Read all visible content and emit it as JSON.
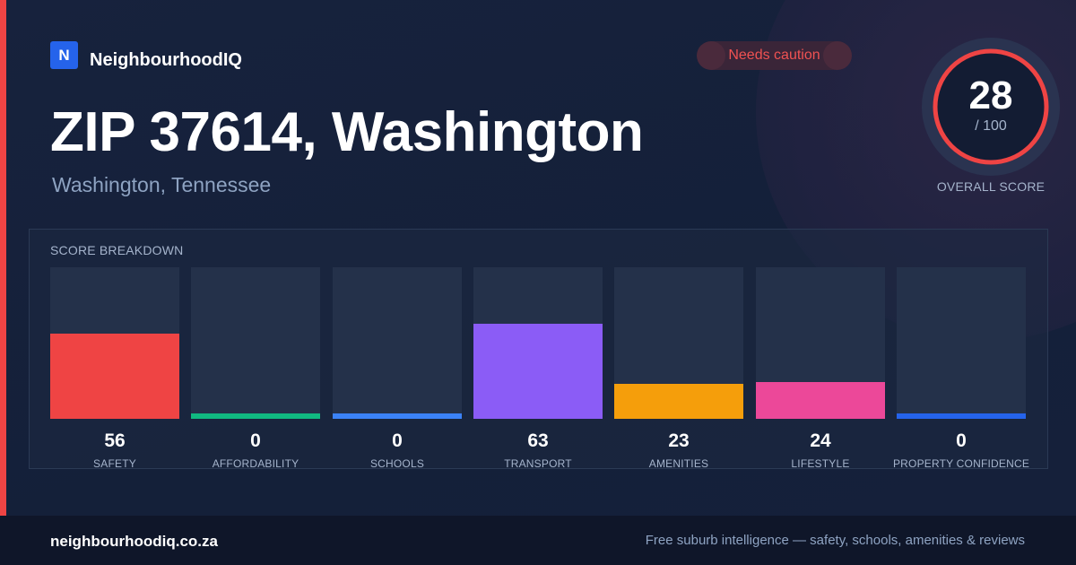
{
  "brand": {
    "logo_letter": "N",
    "name": "NeighbourhoodIQ"
  },
  "badge": {
    "label": "Needs caution",
    "color": "#f05252"
  },
  "header": {
    "title": "ZIP 37614, Washington",
    "subtitle": "Washington, Tennessee"
  },
  "overall": {
    "score": "28",
    "max_label": "/ 100",
    "label": "OVERALL SCORE",
    "fraction": 0.28,
    "ring_color": "#ef4444"
  },
  "breakdown": {
    "title": "SCORE BREAKDOWN",
    "items": [
      {
        "label": "SAFETY",
        "value": "56",
        "score": 56,
        "color": "#ef4444"
      },
      {
        "label": "AFFORDABILITY",
        "value": "0",
        "score": 0,
        "color": "#10b981"
      },
      {
        "label": "SCHOOLS",
        "value": "0",
        "score": 0,
        "color": "#3b82f6"
      },
      {
        "label": "TRANSPORT",
        "value": "63",
        "score": 63,
        "color": "#8b5cf6"
      },
      {
        "label": "AMENITIES",
        "value": "23",
        "score": 23,
        "color": "#f59e0b"
      },
      {
        "label": "LIFESTYLE",
        "value": "24",
        "score": 24,
        "color": "#ec4899"
      },
      {
        "label": "PROPERTY CONFIDENCE",
        "value": "0",
        "score": 0,
        "color": "#2563eb"
      }
    ]
  },
  "footer": {
    "domain": "neighbourhoodiq.co.za",
    "tagline": "Free suburb intelligence — safety, schools, amenities & reviews"
  }
}
